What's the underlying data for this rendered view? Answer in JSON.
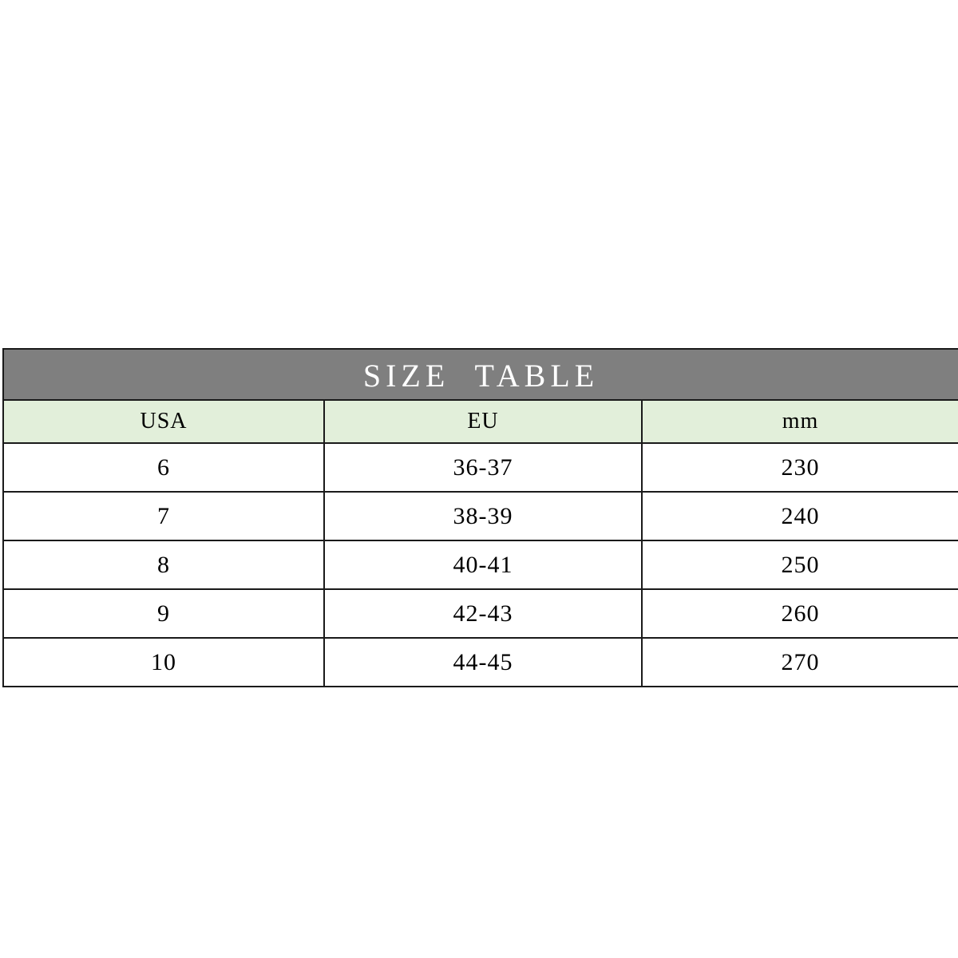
{
  "chart_data": {
    "type": "table",
    "title": "SIZE TABLE",
    "columns": [
      "USA",
      "EU",
      "mm"
    ],
    "rows": [
      [
        "6",
        "36-37",
        "230"
      ],
      [
        "7",
        "38-39",
        "240"
      ],
      [
        "8",
        "40-41",
        "250"
      ],
      [
        "9",
        "42-43",
        "260"
      ],
      [
        "10",
        "44-45",
        "270"
      ]
    ]
  },
  "colors": {
    "title_bg": "#7f7f7f",
    "title_text": "#ffffff",
    "header_bg": "#e2efda",
    "row_bg": "#ffffff",
    "border": "#1a1a1a",
    "text": "#000000"
  }
}
